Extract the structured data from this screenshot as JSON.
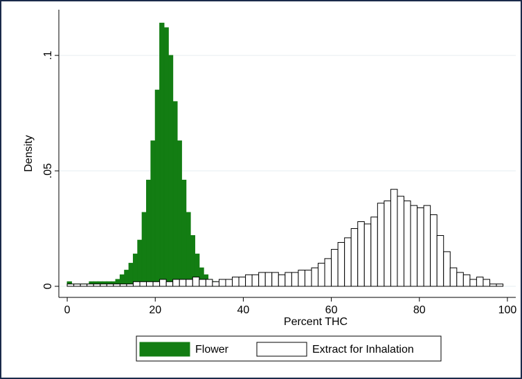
{
  "chart_data": {
    "type": "histogram",
    "xlabel": "Percent THC",
    "ylabel": "Density",
    "xlim": [
      -1.9,
      101.9
    ],
    "ylim": [
      -0.0048,
      0.1198
    ],
    "xticks": [
      0,
      20,
      40,
      60,
      80,
      100
    ],
    "yticks": [
      0,
      {
        "value": 0.05,
        "label": ".05"
      },
      {
        "value": 0.1,
        "label": ".1"
      }
    ],
    "grid": true,
    "legend": "bottom",
    "series": [
      {
        "name": "Flower",
        "color": "#137d13",
        "edgecolor": "#137d13",
        "bins": [
          0,
          1,
          2,
          3,
          4,
          5,
          6,
          7,
          8,
          9,
          10,
          11,
          12,
          13,
          14,
          15,
          16,
          17,
          18,
          19,
          20,
          21,
          22,
          23,
          24,
          25,
          26,
          27,
          28,
          29,
          30,
          31,
          32,
          33,
          34,
          35,
          36
        ],
        "values": [
          0.002,
          0.001,
          0.001,
          0.001,
          0.001,
          0.002,
          0.002,
          0.002,
          0.002,
          0.002,
          0.002,
          0.003,
          0.005,
          0.007,
          0.01,
          0.014,
          0.02,
          0.032,
          0.046,
          0.063,
          0.085,
          0.114,
          0.112,
          0.1,
          0.08,
          0.063,
          0.046,
          0.032,
          0.022,
          0.014,
          0.008,
          0.005,
          0.003,
          0.002,
          0.001,
          0.001
        ]
      },
      {
        "name": "Extract for Inhalation",
        "color": "#ffffff",
        "edgecolor": "#000000",
        "bins": [
          0,
          1.5,
          3,
          4.5,
          6,
          7.5,
          9,
          10.5,
          12,
          13.5,
          15,
          16.5,
          18,
          19.5,
          21,
          22.5,
          24,
          25.5,
          27,
          28.5,
          30,
          31.5,
          33,
          34.5,
          36,
          37.5,
          39,
          40.5,
          42,
          43.5,
          45,
          46.5,
          48,
          49.5,
          51,
          52.5,
          54,
          55.5,
          57,
          58.5,
          60,
          61.5,
          63,
          64.5,
          66,
          67.5,
          69,
          70.5,
          72,
          73.5,
          75,
          76.5,
          78,
          79.5,
          81,
          82.5,
          84,
          85.5,
          87,
          88.5,
          90,
          91.5,
          93,
          94.5,
          96,
          97.5,
          99
        ],
        "values": [
          0.001,
          0.001,
          0.001,
          0.001,
          0.001,
          0.001,
          0.001,
          0.001,
          0.001,
          0.001,
          0.002,
          0.002,
          0.002,
          0.002,
          0.003,
          0.002,
          0.003,
          0.003,
          0.003,
          0.004,
          0.003,
          0.003,
          0.002,
          0.003,
          0.003,
          0.004,
          0.004,
          0.005,
          0.005,
          0.006,
          0.006,
          0.006,
          0.005,
          0.006,
          0.006,
          0.007,
          0.007,
          0.008,
          0.01,
          0.012,
          0.016,
          0.019,
          0.021,
          0.025,
          0.028,
          0.027,
          0.03,
          0.036,
          0.037,
          0.042,
          0.039,
          0.037,
          0.035,
          0.034,
          0.035,
          0.031,
          0.022,
          0.015,
          0.008,
          0.006,
          0.005,
          0.003,
          0.004,
          0.003,
          0.001,
          0.001
        ]
      }
    ]
  }
}
